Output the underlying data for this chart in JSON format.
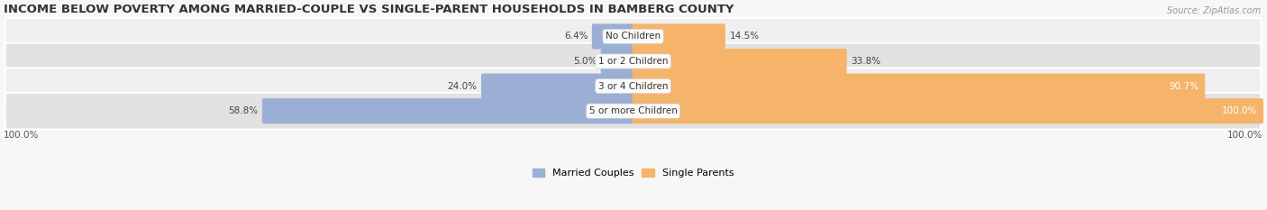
{
  "title": "INCOME BELOW POVERTY AMONG MARRIED-COUPLE VS SINGLE-PARENT HOUSEHOLDS IN BAMBERG COUNTY",
  "source": "Source: ZipAtlas.com",
  "categories": [
    "No Children",
    "1 or 2 Children",
    "3 or 4 Children",
    "5 or more Children"
  ],
  "married_values": [
    6.4,
    5.0,
    24.0,
    58.8
  ],
  "single_values": [
    14.5,
    33.8,
    90.7,
    100.0
  ],
  "married_color": "#9bafd4",
  "single_color": "#f5b469",
  "row_bg_light": "#efefef",
  "row_bg_dark": "#e2e2e2",
  "title_fontsize": 9.5,
  "label_fontsize": 7.5,
  "max_value": 100.0,
  "left_label": "100.0%",
  "right_label": "100.0%",
  "legend_married": "Married Couples",
  "legend_single": "Single Parents",
  "bg_color": "#f7f7f7"
}
